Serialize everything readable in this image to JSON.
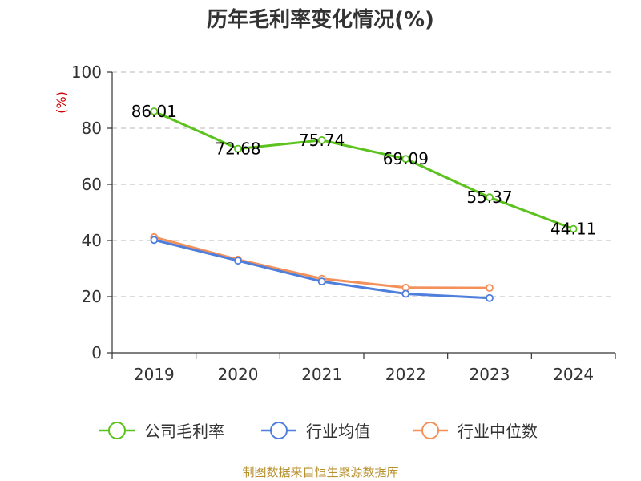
{
  "title": "历年毛利率变化情况(%)",
  "source": "制图数据来自恒生聚源数据库",
  "chart_data": {
    "type": "line",
    "title": "历年毛利率变化情况(%)",
    "ylabel": "(%)",
    "categories": [
      "2019",
      "2020",
      "2021",
      "2022",
      "2023",
      "2024"
    ],
    "ylim": [
      0,
      100
    ],
    "yticks": [
      0,
      20,
      40,
      60,
      80,
      100
    ],
    "grid": "horizontal-dashed",
    "legend_position": "bottom",
    "series": [
      {
        "name": "公司毛利率",
        "color": "#5cc21d",
        "values": [
          86.01,
          72.68,
          75.74,
          69.09,
          55.37,
          44.11
        ],
        "labels": [
          "86.01",
          "72.68",
          "75.74",
          "69.09",
          "55.37",
          "44.11"
        ]
      },
      {
        "name": "行业均值",
        "color": "#4f7fdc",
        "values": [
          40.2,
          32.8,
          25.4,
          21.0,
          19.5,
          null
        ]
      },
      {
        "name": "行业中位数",
        "color": "#f4905a",
        "values": [
          41.2,
          33.2,
          26.4,
          23.2,
          23.1,
          null
        ]
      }
    ]
  }
}
